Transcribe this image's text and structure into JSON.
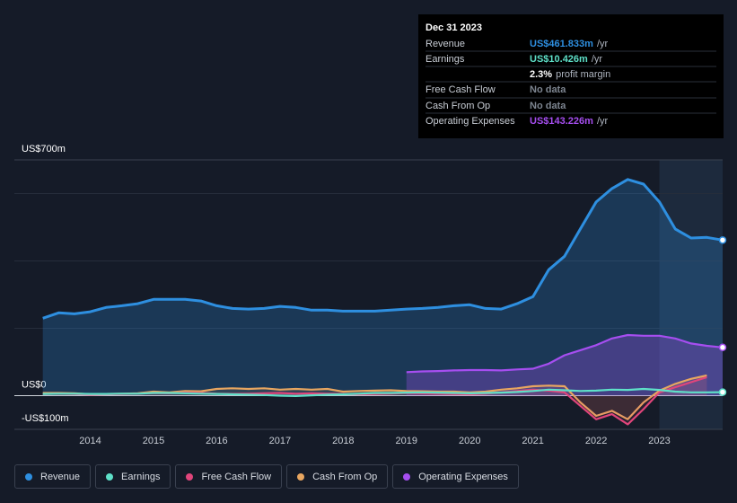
{
  "chart_data": {
    "type": "line",
    "tooltip": {
      "date": "Dec 31 2023",
      "rows": [
        {
          "label": "Revenue",
          "value": "US$461.833m",
          "suffix": "/yr",
          "color": "#2e8fe0"
        },
        {
          "label": "Earnings",
          "value": "US$10.426m",
          "suffix": "/yr",
          "color": "#5ee0c8"
        },
        {
          "label": null,
          "value": "2.3%",
          "suffix": "profit margin",
          "color": "#ffffff"
        },
        {
          "label": "Free Cash Flow",
          "value": "No data",
          "suffix": null,
          "color": "#7d8590"
        },
        {
          "label": "Cash From Op",
          "value": "No data",
          "suffix": null,
          "color": "#7d8590"
        },
        {
          "label": "Operating Expenses",
          "value": "US$143.226m",
          "suffix": "/yr",
          "color": "#a64ef0"
        }
      ]
    },
    "x": [
      2013.25,
      2013.5,
      2013.75,
      2014,
      2014.25,
      2014.5,
      2014.75,
      2015,
      2015.25,
      2015.5,
      2015.75,
      2016,
      2016.25,
      2016.5,
      2016.75,
      2017,
      2017.25,
      2017.5,
      2017.75,
      2018,
      2018.25,
      2018.5,
      2018.75,
      2019,
      2019.25,
      2019.5,
      2019.75,
      2020,
      2020.25,
      2020.5,
      2020.75,
      2021,
      2021.25,
      2021.5,
      2021.75,
      2022,
      2022.25,
      2022.5,
      2022.75,
      2023,
      2023.25,
      2023.5,
      2023.75,
      2024
    ],
    "series": [
      {
        "name": "Revenue",
        "color": "#2e8fe0",
        "values": [
          230,
          246,
          243,
          249,
          262,
          267,
          273,
          286,
          286,
          286,
          281,
          267,
          259,
          257,
          259,
          265,
          262,
          254,
          254,
          251,
          251,
          251,
          254,
          257,
          259,
          262,
          267,
          270,
          259,
          257,
          273,
          294,
          374,
          414,
          495,
          575,
          615,
          642,
          628,
          575,
          495,
          468,
          470,
          461.833
        ]
      },
      {
        "name": "Earnings",
        "color": "#5ee0c8",
        "values": [
          5,
          6,
          6,
          5,
          5,
          6,
          6,
          8,
          8,
          7,
          6,
          5,
          4,
          3,
          2,
          0,
          -1,
          1,
          3,
          4,
          6,
          8,
          8,
          9,
          10,
          9,
          8,
          7,
          8,
          9,
          11,
          14,
          18,
          16,
          14,
          15,
          18,
          17,
          20,
          17,
          12,
          10,
          10,
          10.426
        ]
      },
      {
        "name": "Free Cash Flow",
        "color": "#e0457b",
        "values": [
          5,
          6,
          5,
          3,
          4,
          5,
          6,
          8,
          7,
          9,
          8,
          6,
          5,
          6,
          7,
          8,
          6,
          7,
          6,
          5,
          4,
          5,
          6,
          8,
          7,
          6,
          5,
          4,
          6,
          10,
          14,
          18,
          15,
          10,
          -30,
          -70,
          -55,
          -85,
          -40,
          10,
          25,
          40,
          55,
          null
        ]
      },
      {
        "name": "Cash From Op",
        "color": "#e8a660",
        "values": [
          8,
          8,
          7,
          4,
          5,
          6,
          7,
          12,
          10,
          14,
          13,
          20,
          22,
          20,
          22,
          18,
          20,
          18,
          20,
          12,
          14,
          15,
          16,
          14,
          13,
          12,
          12,
          10,
          12,
          18,
          22,
          28,
          30,
          28,
          -20,
          -60,
          -45,
          -70,
          -20,
          15,
          35,
          50,
          60,
          null
        ]
      },
      {
        "name": "Operating Expenses",
        "color": "#a64ef0",
        "values": [
          null,
          null,
          null,
          null,
          null,
          null,
          null,
          null,
          null,
          null,
          null,
          null,
          null,
          null,
          null,
          null,
          null,
          null,
          null,
          null,
          null,
          null,
          null,
          70,
          72,
          73,
          75,
          76,
          76,
          75,
          78,
          80,
          95,
          120,
          135,
          150,
          170,
          180,
          178,
          178,
          170,
          155,
          148,
          143.226
        ]
      }
    ],
    "xlim": [
      2012.8,
      2024.0
    ],
    "xticks": [
      2014,
      2015,
      2016,
      2017,
      2018,
      2019,
      2020,
      2021,
      2022,
      2023
    ],
    "ylim": [
      -100,
      700
    ],
    "yticks": [
      {
        "value": 700,
        "label": "US$700m"
      },
      {
        "value": 0,
        "label": "US$0"
      },
      {
        "value": -100,
        "label": "-US$100m"
      }
    ],
    "ygrid": [
      200,
      400,
      600
    ]
  }
}
